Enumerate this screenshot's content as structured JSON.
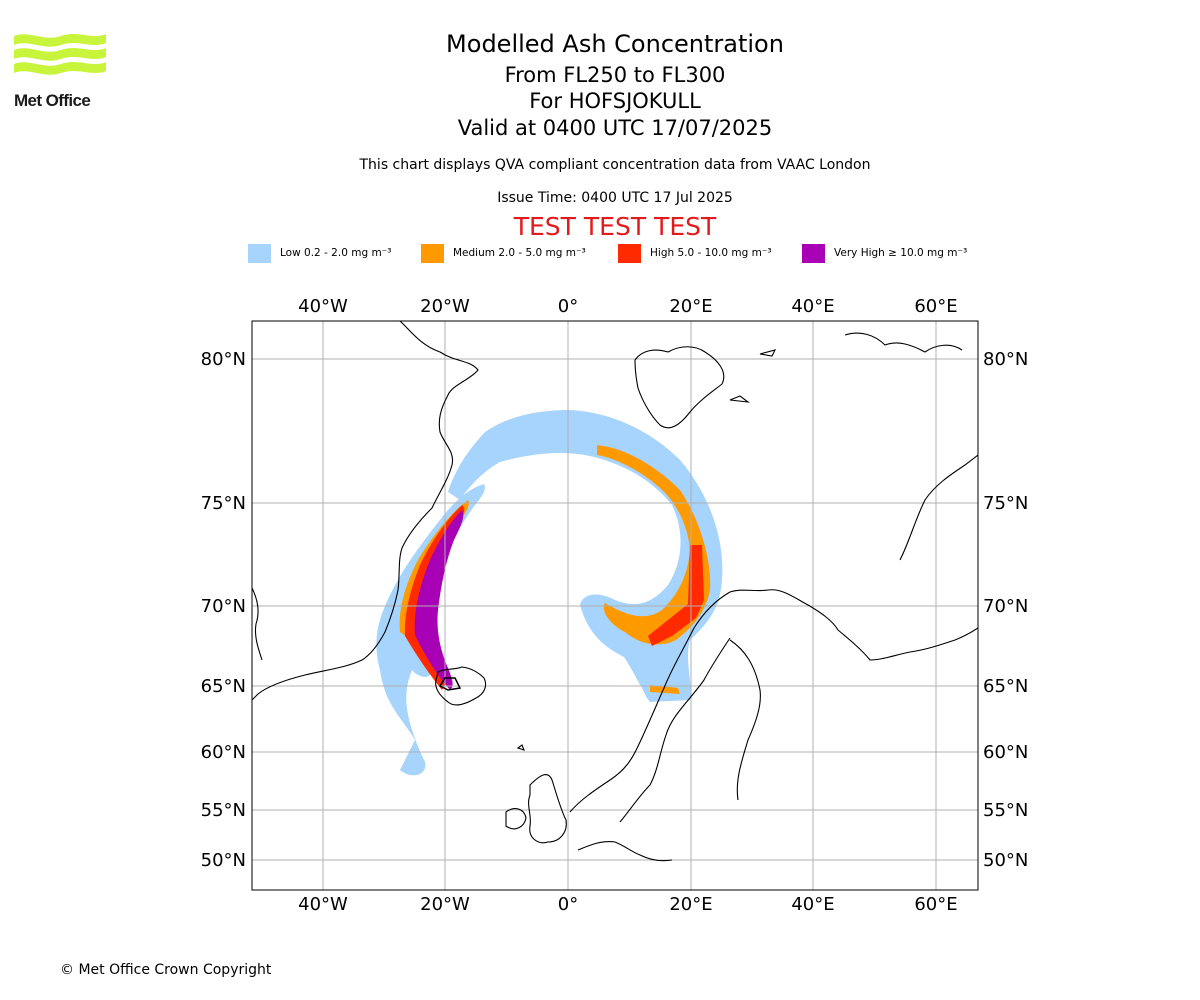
{
  "header": {
    "title": "Modelled Ash Concentration",
    "levels": "From FL250 to FL300",
    "volcano": "For HOFSJOKULL",
    "valid": "Valid at 0400 UTC 17/07/2025",
    "compliance": "This chart displays QVA compliant concentration data from VAAC London",
    "issue_time": "Issue Time: 0400 UTC 17 Jul 2025",
    "test_banner": "TEST TEST TEST"
  },
  "logo": {
    "text": "Met Office",
    "color": "#c8f53c"
  },
  "legend": [
    {
      "label": "Low 0.2 - 2.0 mg m⁻³",
      "color": "#a6d4fc"
    },
    {
      "label": "Medium 2.0 - 5.0 mg m⁻³",
      "color": "#ff9900"
    },
    {
      "label": "High 5.0 - 10.0 mg m⁻³",
      "color": "#ff2a00"
    },
    {
      "label": "Very High ≥ 10.0 mg m⁻³",
      "color": "#a800b4"
    }
  ],
  "map": {
    "lon_labels": [
      "40°W",
      "20°W",
      "0°",
      "20°E",
      "40°E",
      "60°E"
    ],
    "lat_labels": [
      "80°N",
      "75°N",
      "70°N",
      "65°N",
      "60°N",
      "55°N",
      "50°N"
    ],
    "lon_range": [
      -52,
      67
    ],
    "lat_range": [
      48,
      82
    ],
    "grid": true,
    "coastline_color": "#000000",
    "gridline_color": "#b0b0b0"
  },
  "footer": {
    "copyright": "© Met Office Crown Copyright"
  }
}
